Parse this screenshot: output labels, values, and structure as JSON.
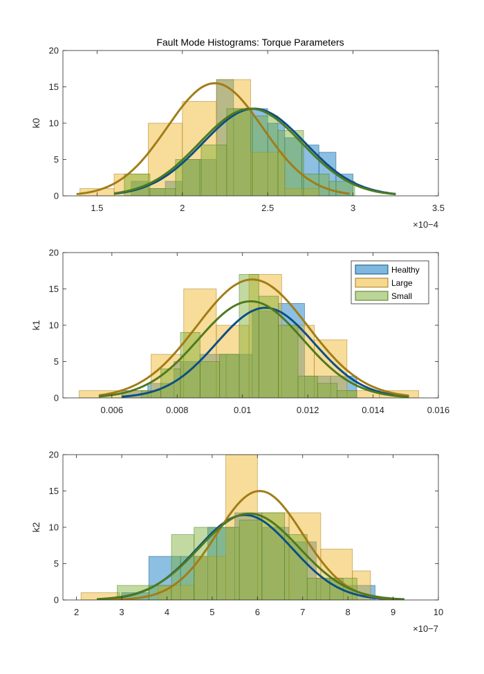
{
  "title": "Fault Mode Histograms: Torque Parameters",
  "colors": {
    "Healthy": "#0072BD",
    "Large": "#EDB120",
    "Small": "#77AC30",
    "HealthyLine": "#0B4F86",
    "LargeLine": "#A27C17",
    "SmallLine": "#4E7A1E"
  },
  "legend": {
    "placement": "top-right of panel 2",
    "entries": [
      "Healthy",
      "Large",
      "Small"
    ]
  },
  "chart_data": [
    {
      "type": "bar",
      "ylabel": "k0",
      "xlim": [
        1.3,
        3.5
      ],
      "ylim": [
        0,
        20
      ],
      "xticks": [
        "1.5",
        "2",
        "2.5",
        "3",
        "3.5"
      ],
      "yticks": [
        "0",
        "5",
        "10",
        "15",
        "20"
      ],
      "exponent_label": "×10−4",
      "series": [
        {
          "name": "Healthy",
          "edges": [
            1.6,
            1.7,
            1.8,
            1.9,
            2.0,
            2.1,
            2.2,
            2.3,
            2.4,
            2.5,
            2.6,
            2.7,
            2.8,
            2.9,
            3.0
          ],
          "counts": [
            0,
            2,
            1,
            2,
            5,
            5,
            16,
            12,
            12,
            10,
            8,
            7,
            6,
            3
          ],
          "curve": {
            "mean": 2.42,
            "peak": 12.0,
            "sd": 0.3,
            "range": [
              1.6,
              3.25
            ]
          }
        },
        {
          "name": "Large",
          "edges": [
            1.4,
            1.6,
            1.8,
            2.0,
            2.2,
            2.4,
            2.6,
            2.8
          ],
          "counts": [
            1,
            3,
            10,
            13,
            16,
            6,
            1
          ],
          "curve": {
            "mean": 2.19,
            "peak": 15.5,
            "sd": 0.28,
            "range": [
              1.38,
              2.98
            ]
          }
        },
        {
          "name": "Small",
          "edges": [
            1.66,
            1.81,
            1.96,
            2.11,
            2.26,
            2.41,
            2.56,
            2.71,
            2.86,
            3.01
          ],
          "counts": [
            3,
            1,
            5,
            7,
            12,
            11,
            9,
            3,
            2
          ],
          "curve": {
            "mean": 2.4,
            "peak": 12.0,
            "sd": 0.3,
            "range": [
              1.6,
              3.25
            ]
          }
        }
      ]
    },
    {
      "type": "bar",
      "ylabel": "k1",
      "xlim": [
        0.0045,
        0.016
      ],
      "ylim": [
        0,
        20
      ],
      "xticks": [
        "0.006",
        "0.008",
        "0.01",
        "0.012",
        "0.014",
        "0.016"
      ],
      "yticks": [
        "0",
        "5",
        "10",
        "15",
        "20"
      ],
      "exponent_label": "",
      "series": [
        {
          "name": "Healthy",
          "edges": [
            0.0063,
            0.0071,
            0.0079,
            0.0087,
            0.0095,
            0.0103,
            0.0111,
            0.0119,
            0.0127,
            0.0135
          ],
          "counts": [
            1,
            2,
            5,
            6,
            6,
            12,
            13,
            3,
            3
          ],
          "curve": {
            "mean": 0.0107,
            "peak": 12.4,
            "sd": 0.0015,
            "range": [
              0.0063,
              0.0148
            ]
          }
        },
        {
          "name": "Large",
          "edges": [
            0.005,
            0.0072,
            0.0082,
            0.0092,
            0.0102,
            0.0112,
            0.0122,
            0.0132,
            0.0142,
            0.0154
          ],
          "counts": [
            1,
            6,
            15,
            10,
            17,
            10,
            8,
            1,
            1
          ],
          "curve": {
            "mean": 0.0103,
            "peak": 16.3,
            "sd": 0.0017,
            "range": [
              0.0056,
              0.0151
            ]
          }
        },
        {
          "name": "Small",
          "edges": [
            0.0069,
            0.0075,
            0.0081,
            0.0087,
            0.0093,
            0.0099,
            0.0105,
            0.0111,
            0.0117,
            0.0123,
            0.0129,
            0.0135
          ],
          "counts": [
            1,
            4,
            9,
            5,
            6,
            17,
            14,
            10,
            3,
            2,
            1
          ],
          "curve": {
            "mean": 0.01025,
            "peak": 13.3,
            "sd": 0.0016,
            "range": [
              0.0056,
              0.0151
            ]
          }
        }
      ]
    },
    {
      "type": "bar",
      "ylabel": "k2",
      "xlim": [
        1.7,
        10
      ],
      "ylim": [
        0,
        20
      ],
      "xticks": [
        "2",
        "3",
        "4",
        "5",
        "6",
        "7",
        "8",
        "9",
        "10"
      ],
      "yticks": [
        "0",
        "5",
        "10",
        "15",
        "20"
      ],
      "exponent_label": "×10−7",
      "series": [
        {
          "name": "Healthy",
          "edges": [
            2.5,
            3.0,
            3.6,
            4.3,
            4.9,
            5.5,
            6.1,
            6.7,
            7.3,
            7.9,
            8.6
          ],
          "counts": [
            0,
            1,
            6,
            6,
            10,
            12,
            10,
            8,
            3,
            2
          ],
          "curve": {
            "mean": 5.72,
            "peak": 11.7,
            "sd": 1.05,
            "range": [
              2.45,
              8.9
            ]
          }
        },
        {
          "name": "Large",
          "edges": [
            2.1,
            2.95,
            3.8,
            4.6,
            5.3,
            6.0,
            6.7,
            7.4,
            8.1,
            8.5
          ],
          "counts": [
            1,
            0,
            2,
            6,
            20,
            12,
            12,
            7,
            4
          ],
          "curve": {
            "mean": 6.05,
            "peak": 15.0,
            "sd": 0.95,
            "range": [
              2.45,
              9.25
            ]
          }
        },
        {
          "name": "Small",
          "edges": [
            2.9,
            3.6,
            4.1,
            4.6,
            5.1,
            5.6,
            6.1,
            6.6,
            7.1,
            7.6,
            8.2
          ],
          "counts": [
            2,
            2,
            9,
            10,
            10,
            11,
            12,
            9,
            3,
            3
          ],
          "curve": {
            "mean": 5.82,
            "peak": 11.9,
            "sd": 1.1,
            "range": [
              2.45,
              9.25
            ]
          }
        }
      ]
    }
  ]
}
